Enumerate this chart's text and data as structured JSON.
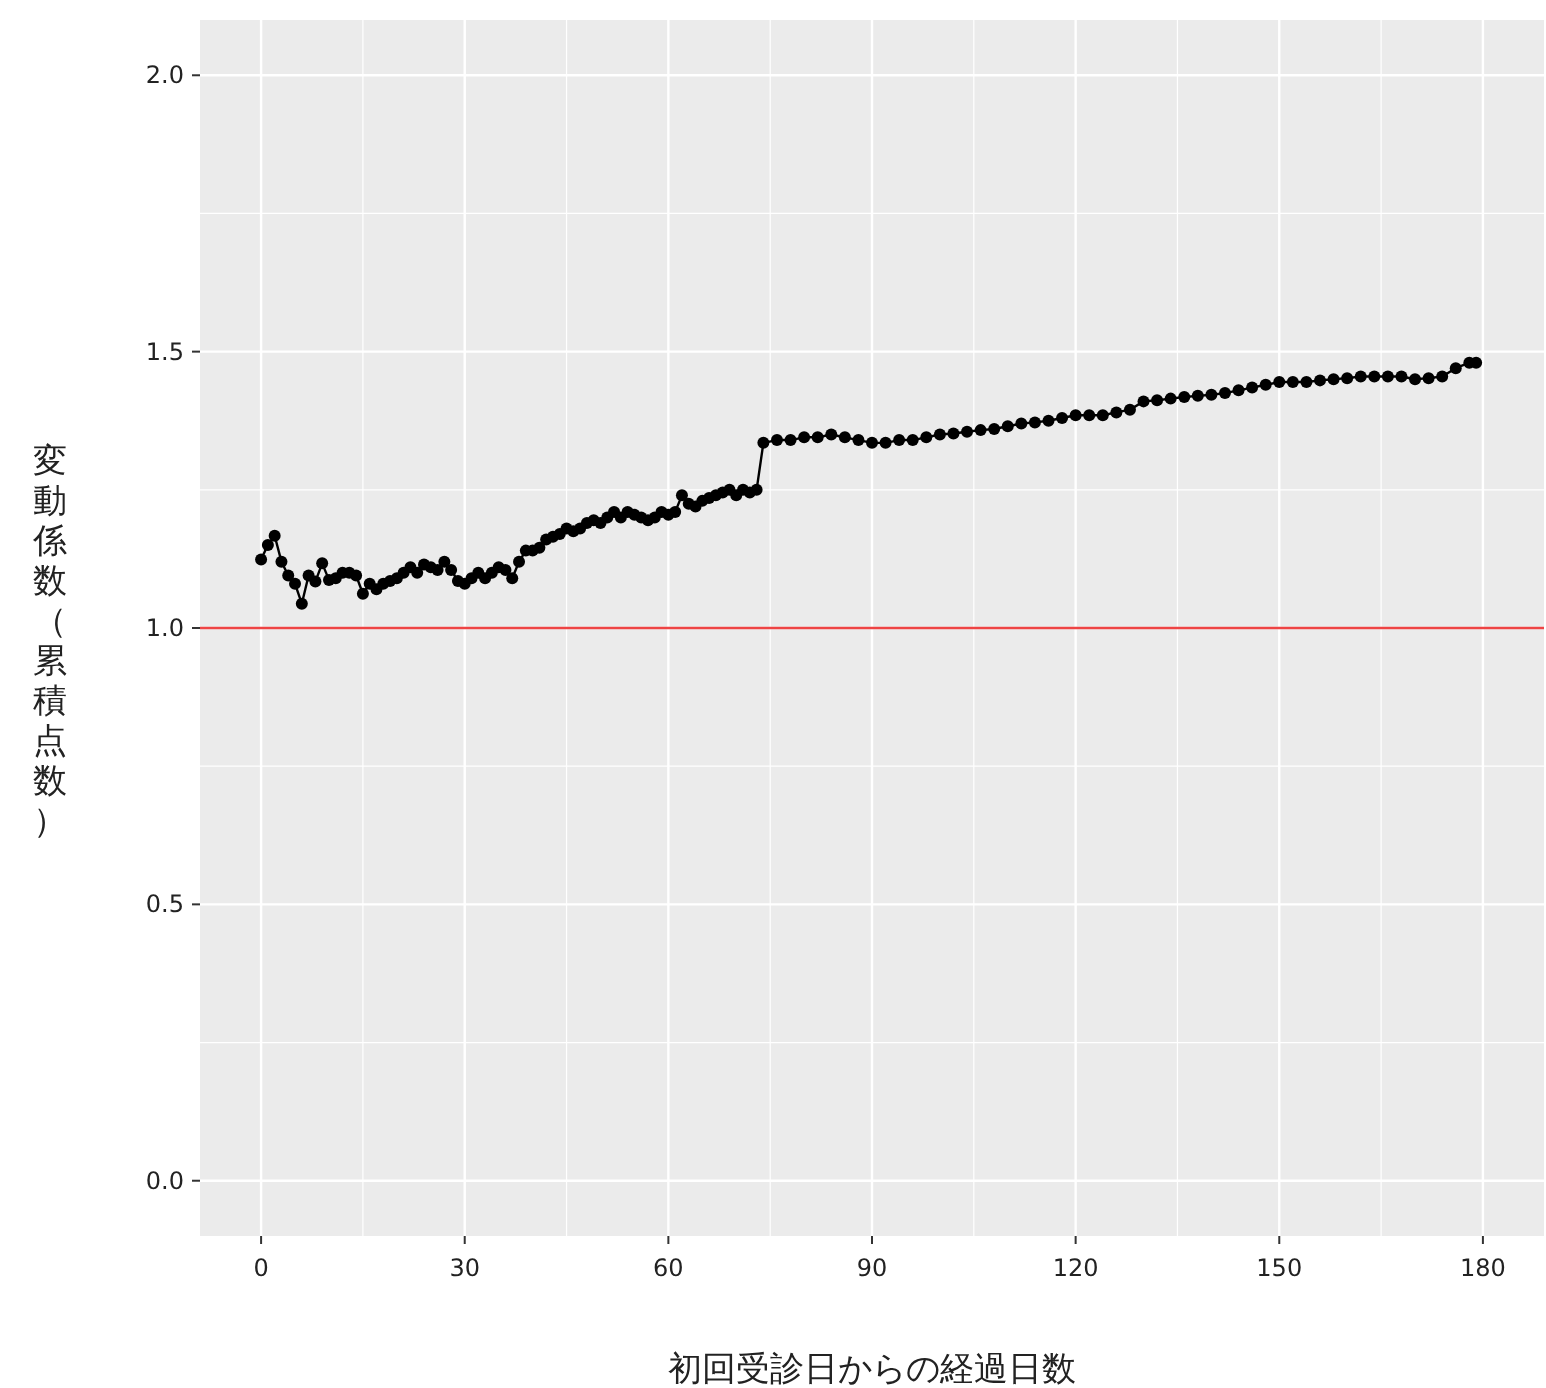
{
  "chart_data": {
    "type": "line",
    "xlabel": "初回受診日からの経過日数",
    "ylabel": "変動係数（累積点数）",
    "marker": "circle",
    "line_style": "solid",
    "grid": true,
    "xlim": [
      -9,
      189
    ],
    "ylim": [
      -0.1,
      2.1
    ],
    "xticks": [
      0,
      30,
      60,
      90,
      120,
      150,
      180
    ],
    "yticks": [
      {
        "value": 0,
        "label": "0.0"
      },
      {
        "value": 0.5,
        "label": "0.5"
      },
      {
        "value": 1,
        "label": "1.0"
      },
      {
        "value": 1.5,
        "label": "1.5"
      },
      {
        "value": 2,
        "label": "2.0"
      }
    ],
    "ref_lines": [
      {
        "axis": "y",
        "value": 1,
        "color": "#ee4444"
      }
    ],
    "series": [
      {
        "color": "#000000",
        "x": [
          0,
          1,
          2,
          3,
          4,
          5,
          6,
          7,
          8,
          9,
          10,
          11,
          12,
          13,
          14,
          15,
          16,
          17,
          18,
          19,
          20,
          21,
          22,
          23,
          24,
          25,
          26,
          27,
          28,
          29,
          30,
          31,
          32,
          33,
          34,
          35,
          36,
          37,
          38,
          39,
          40,
          41,
          42,
          43,
          44,
          45,
          46,
          47,
          48,
          49,
          50,
          51,
          52,
          53,
          54,
          55,
          56,
          57,
          58,
          59,
          60,
          61,
          62,
          63,
          64,
          65,
          66,
          67,
          68,
          69,
          70,
          71,
          72,
          73,
          74,
          76,
          78,
          80,
          82,
          84,
          86,
          88,
          90,
          92,
          94,
          96,
          98,
          100,
          102,
          104,
          106,
          108,
          110,
          112,
          114,
          116,
          118,
          120,
          122,
          124,
          126,
          128,
          130,
          132,
          134,
          136,
          138,
          140,
          142,
          144,
          146,
          148,
          150,
          152,
          154,
          156,
          158,
          160,
          162,
          164,
          166,
          168,
          170,
          172,
          174,
          176,
          178,
          179
        ],
        "values": [
          1.124,
          1.15,
          1.167,
          1.12,
          1.095,
          1.08,
          1.044,
          1.095,
          1.084,
          1.117,
          1.087,
          1.09,
          1.1,
          1.1,
          1.095,
          1.062,
          1.08,
          1.07,
          1.08,
          1.085,
          1.09,
          1.1,
          1.11,
          1.1,
          1.115,
          1.11,
          1.105,
          1.12,
          1.105,
          1.085,
          1.08,
          1.09,
          1.1,
          1.09,
          1.1,
          1.11,
          1.105,
          1.09,
          1.12,
          1.14,
          1.14,
          1.145,
          1.16,
          1.165,
          1.17,
          1.18,
          1.175,
          1.18,
          1.19,
          1.195,
          1.19,
          1.2,
          1.21,
          1.2,
          1.21,
          1.205,
          1.2,
          1.195,
          1.2,
          1.21,
          1.205,
          1.21,
          1.24,
          1.225,
          1.22,
          1.23,
          1.235,
          1.24,
          1.245,
          1.25,
          1.24,
          1.25,
          1.245,
          1.25,
          1.335,
          1.34,
          1.34,
          1.345,
          1.345,
          1.35,
          1.345,
          1.34,
          1.335,
          1.335,
          1.34,
          1.34,
          1.345,
          1.35,
          1.352,
          1.355,
          1.358,
          1.36,
          1.365,
          1.37,
          1.372,
          1.375,
          1.38,
          1.385,
          1.385,
          1.385,
          1.39,
          1.395,
          1.41,
          1.412,
          1.415,
          1.418,
          1.42,
          1.422,
          1.425,
          1.43,
          1.435,
          1.44,
          1.445,
          1.445,
          1.445,
          1.448,
          1.45,
          1.452,
          1.455,
          1.455,
          1.455,
          1.455,
          1.45,
          1.452,
          1.455,
          1.47,
          1.48,
          1.48
        ]
      }
    ]
  }
}
